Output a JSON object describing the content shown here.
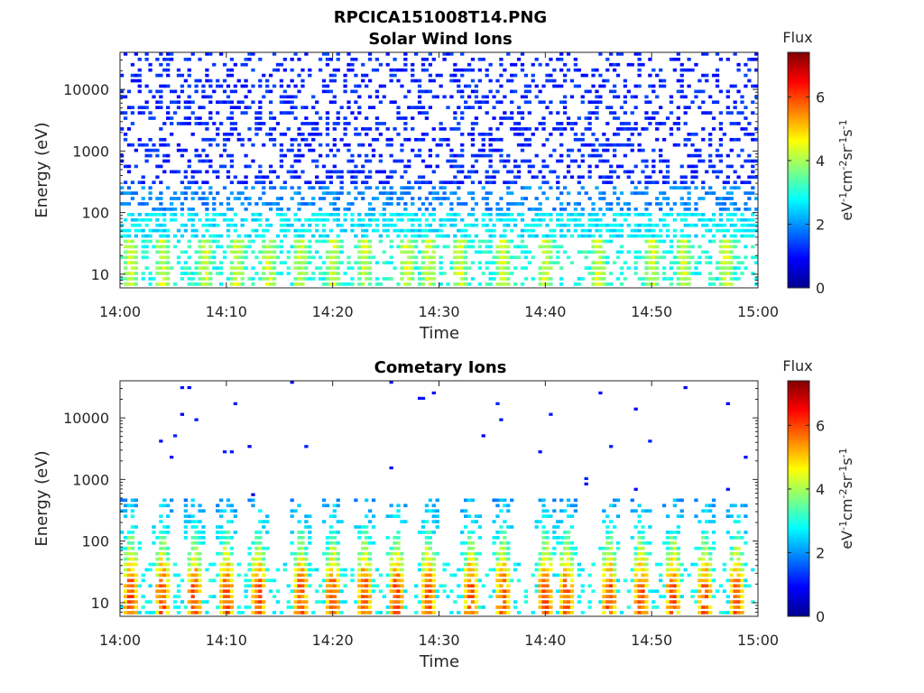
{
  "figure": {
    "title": "RPCICA151008T14.PNG"
  },
  "chart_data": [
    {
      "type": "heatmap",
      "title": "Solar Wind Ions",
      "xlabel": "Time",
      "ylabel": "Energy (eV)",
      "xticks": [
        "14:00",
        "14:10",
        "14:20",
        "14:30",
        "14:40",
        "14:50",
        "15:00"
      ],
      "xlim": [
        "14:00",
        "15:00"
      ],
      "yscale": "log",
      "yticks": [
        "10",
        "100",
        "1000",
        "10000"
      ],
      "ylim": [
        6,
        40000
      ],
      "colorbar": {
        "title": "Flux",
        "label_parts": [
          "eV",
          "-1",
          "cm",
          "-2",
          "sr",
          "-1",
          "s",
          "-1"
        ],
        "ticks": [
          "0",
          "2",
          "4",
          "6"
        ],
        "range": [
          0,
          7.4
        ],
        "colormap": "jet"
      },
      "pattern": {
        "low_band_peak_times": [
          "14:01",
          "14:04",
          "14:08",
          "14:11",
          "14:14",
          "14:17",
          "14:20",
          "14:23",
          "14:27",
          "14:29",
          "14:32",
          "14:36",
          "14:40",
          "14:45",
          "14:50",
          "14:53",
          "14:57"
        ],
        "low_band_peak_flux": 4.9,
        "high_energy_background_flux": 1.3
      }
    },
    {
      "type": "heatmap",
      "title": "Cometary Ions",
      "xlabel": "Time",
      "ylabel": "Energy (eV)",
      "xticks": [
        "14:00",
        "14:10",
        "14:20",
        "14:30",
        "14:40",
        "14:50",
        "15:00"
      ],
      "xlim": [
        "14:00",
        "15:00"
      ],
      "yscale": "log",
      "yticks": [
        "10",
        "100",
        "1000",
        "10000"
      ],
      "ylim": [
        6,
        40000
      ],
      "colorbar": {
        "title": "Flux",
        "label_parts": [
          "eV",
          "-1",
          "cm",
          "-2",
          "sr",
          "-1",
          "s",
          "-1"
        ],
        "ticks": [
          "0",
          "2",
          "4",
          "6"
        ],
        "range": [
          0,
          7.4
        ],
        "colormap": "jet"
      },
      "pattern": {
        "pulse_times": [
          "14:01",
          "14:04",
          "14:07",
          "14:10",
          "14:13",
          "14:17",
          "14:20",
          "14:23",
          "14:26",
          "14:29",
          "14:33",
          "14:36",
          "14:40",
          "14:42",
          "14:46",
          "14:49",
          "14:52",
          "14:55",
          "14:58"
        ],
        "pulse_peak_flux": 6.6,
        "sparse_high_energy_flux": 0.8
      }
    }
  ]
}
